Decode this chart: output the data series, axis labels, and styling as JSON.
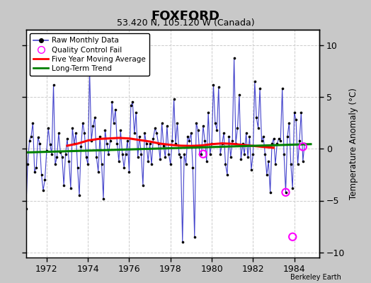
{
  "title": "FOXFORD",
  "subtitle": "53.420 N, 105.120 W (Canada)",
  "ylabel": "Temperature Anomaly (°C)",
  "credit": "Berkeley Earth",
  "xlim": [
    1971.0,
    1985.2
  ],
  "ylim": [
    -10.5,
    11.5
  ],
  "yticks": [
    -10,
    -5,
    0,
    5,
    10
  ],
  "xticks": [
    1972,
    1974,
    1976,
    1978,
    1980,
    1982,
    1984
  ],
  "bg_color": "#c8c8c8",
  "plot_bg_color": "#ffffff",
  "grid_color": "#cccccc",
  "raw_color": "#4444cc",
  "dot_color": "black",
  "moving_avg_color": "red",
  "trend_color": "green",
  "qc_fail_color": "magenta",
  "raw_data": {
    "x": [
      1971.0,
      1971.083,
      1971.167,
      1971.25,
      1971.333,
      1971.417,
      1971.5,
      1971.583,
      1971.667,
      1971.75,
      1971.833,
      1971.917,
      1972.0,
      1972.083,
      1972.167,
      1972.25,
      1972.333,
      1972.417,
      1972.5,
      1972.583,
      1972.667,
      1972.75,
      1972.833,
      1972.917,
      1973.0,
      1973.083,
      1973.167,
      1973.25,
      1973.333,
      1973.417,
      1973.5,
      1973.583,
      1973.667,
      1973.75,
      1973.833,
      1973.917,
      1974.0,
      1974.083,
      1974.167,
      1974.25,
      1974.333,
      1974.417,
      1974.5,
      1974.583,
      1974.667,
      1974.75,
      1974.833,
      1974.917,
      1975.0,
      1975.083,
      1975.167,
      1975.25,
      1975.333,
      1975.417,
      1975.5,
      1975.583,
      1975.667,
      1975.75,
      1975.833,
      1975.917,
      1976.0,
      1976.083,
      1976.167,
      1976.25,
      1976.333,
      1976.417,
      1976.5,
      1976.583,
      1976.667,
      1976.75,
      1976.833,
      1976.917,
      1977.0,
      1977.083,
      1977.167,
      1977.25,
      1977.333,
      1977.417,
      1977.5,
      1977.583,
      1977.667,
      1977.75,
      1977.833,
      1977.917,
      1978.0,
      1978.083,
      1978.167,
      1978.25,
      1978.333,
      1978.417,
      1978.5,
      1978.583,
      1978.667,
      1978.75,
      1978.833,
      1978.917,
      1979.0,
      1979.083,
      1979.167,
      1979.25,
      1979.333,
      1979.417,
      1979.5,
      1979.583,
      1979.667,
      1979.75,
      1979.833,
      1979.917,
      1980.0,
      1980.083,
      1980.167,
      1980.25,
      1980.333,
      1980.417,
      1980.5,
      1980.583,
      1980.667,
      1980.75,
      1980.833,
      1980.917,
      1981.0,
      1981.083,
      1981.167,
      1981.25,
      1981.333,
      1981.417,
      1981.5,
      1981.583,
      1981.667,
      1981.75,
      1981.833,
      1981.917,
      1982.0,
      1982.083,
      1982.167,
      1982.25,
      1982.333,
      1982.417,
      1982.5,
      1982.583,
      1982.667,
      1982.75,
      1982.833,
      1982.917,
      1983.0,
      1983.083,
      1983.167,
      1983.25,
      1983.333,
      1983.417,
      1983.5,
      1983.583,
      1983.667,
      1983.75,
      1983.833,
      1983.917,
      1984.0,
      1984.083,
      1984.167,
      1984.25,
      1984.333,
      1984.417,
      1984.5
    ],
    "y": [
      -5.8,
      -1.5,
      0.8,
      1.2,
      2.5,
      -2.2,
      -1.8,
      1.1,
      0.5,
      -2.5,
      -4.0,
      -3.0,
      -0.2,
      2.0,
      0.4,
      -0.5,
      6.2,
      -1.5,
      -0.8,
      1.5,
      -0.3,
      -0.8,
      -3.5,
      -0.5,
      1.0,
      -1.2,
      -3.8,
      2.0,
      0.5,
      1.5,
      -1.8,
      -4.5,
      0.2,
      2.5,
      1.5,
      -0.8,
      -1.5,
      7.5,
      0.8,
      2.2,
      3.0,
      -0.8,
      -2.2,
      1.2,
      -1.5,
      -4.8,
      1.8,
      0.5,
      -0.5,
      0.8,
      4.5,
      2.5,
      3.8,
      0.5,
      -1.2,
      1.8,
      -0.5,
      -1.8,
      -0.5,
      0.8,
      -2.2,
      4.2,
      4.5,
      1.5,
      3.5,
      -0.8,
      1.2,
      -0.5,
      -3.5,
      1.5,
      0.5,
      -1.2,
      0.5,
      -1.5,
      1.0,
      2.0,
      1.5,
      0.5,
      -1.0,
      2.5,
      0.3,
      -0.8,
      2.2,
      -0.5,
      -1.5,
      0.8,
      4.8,
      0.5,
      2.5,
      -0.5,
      -0.8,
      -9.0,
      -0.5,
      -1.5,
      1.2,
      0.8,
      1.5,
      -1.8,
      -8.5,
      2.5,
      1.8,
      -0.5,
      -0.5,
      2.2,
      0.8,
      -1.2,
      3.5,
      -0.5,
      0.5,
      6.2,
      2.5,
      1.8,
      6.0,
      -0.5,
      0.5,
      1.5,
      -1.5,
      -2.5,
      1.2,
      -0.8,
      0.8,
      8.8,
      0.5,
      2.0,
      5.2,
      -1.0,
      0.5,
      -0.5,
      1.5,
      -0.8,
      1.2,
      -2.0,
      -0.5,
      6.5,
      3.0,
      2.0,
      5.8,
      0.8,
      1.2,
      -0.5,
      -2.5,
      -1.2,
      -4.2,
      0.5,
      1.0,
      -1.5,
      0.5,
      1.0,
      0.8,
      5.8,
      -0.5,
      -4.2,
      1.2,
      2.5,
      -1.5,
      -3.8,
      3.5,
      2.8,
      -1.5,
      0.8,
      3.5,
      -1.2,
      0.5
    ]
  },
  "qc_fail_points": {
    "x": [
      1979.583,
      1983.583,
      1983.917,
      1984.417
    ],
    "y": [
      -0.5,
      -4.2,
      -8.5,
      0.2
    ]
  },
  "moving_avg": {
    "x": [
      1973.0,
      1973.5,
      1974.0,
      1974.5,
      1975.0,
      1975.5,
      1976.0,
      1976.5,
      1977.0,
      1977.5,
      1978.0,
      1978.5,
      1979.0,
      1979.5,
      1980.0,
      1980.5,
      1981.0,
      1981.5,
      1982.0,
      1982.5,
      1983.0
    ],
    "y": [
      0.3,
      0.5,
      0.8,
      0.95,
      1.0,
      1.05,
      1.0,
      0.85,
      0.7,
      0.5,
      0.38,
      0.3,
      0.28,
      0.32,
      0.45,
      0.52,
      0.48,
      0.38,
      0.28,
      0.18,
      0.1
    ]
  },
  "trend": {
    "x": [
      1971.0,
      1984.8
    ],
    "y": [
      -0.35,
      0.45
    ]
  }
}
